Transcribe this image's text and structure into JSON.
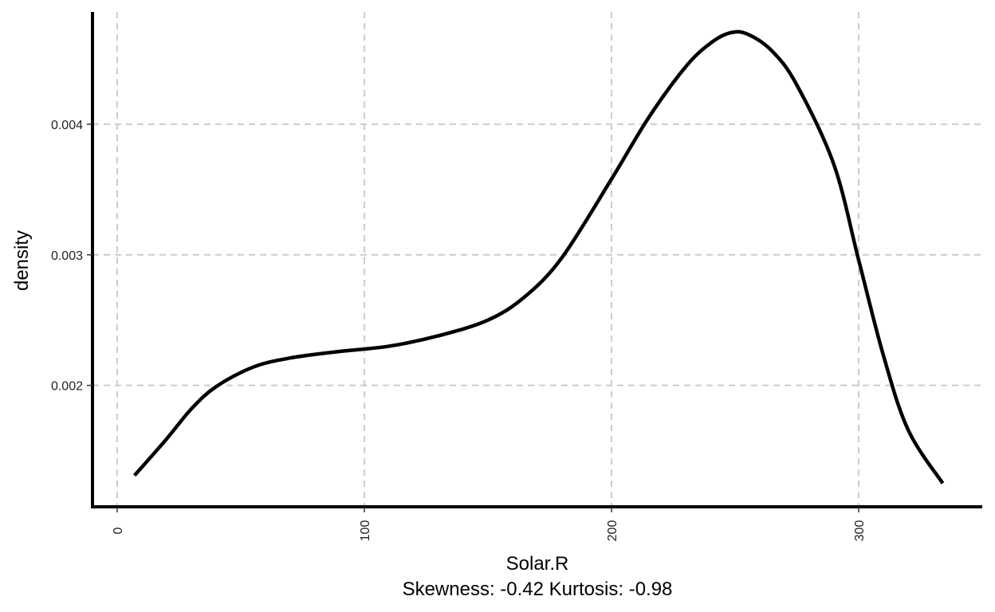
{
  "chart_data": {
    "type": "line",
    "title": "",
    "xlabel": "Solar.R",
    "subtitle": "Skewness: -0.42 Kurtosis: -0.98",
    "ylabel": "density",
    "xlim": [
      -10,
      350
    ],
    "ylim": [
      0.00107,
      0.00486
    ],
    "x_ticks": [
      0,
      100,
      200,
      300
    ],
    "x_tick_labels": [
      "0",
      "100",
      "200",
      "300"
    ],
    "y_ticks": [
      0.002,
      0.003,
      0.004
    ],
    "y_tick_labels": [
      "0.002",
      "0.003",
      "0.004"
    ],
    "grid": true,
    "grid_style": "dashed",
    "line_color": "#000000",
    "grid_color": "#cccccc",
    "legend": "none",
    "series": [
      {
        "x": [
          7,
          20,
          30,
          40,
          55,
          70,
          90,
          110,
          130,
          150,
          165,
          180,
          200,
          215,
          230,
          240,
          248,
          255,
          265,
          275,
          290,
          300,
          310,
          320,
          334
        ],
        "y": [
          0.00131,
          0.00159,
          0.00182,
          0.00199,
          0.00214,
          0.00221,
          0.00226,
          0.0023,
          0.00238,
          0.0025,
          0.00268,
          0.00298,
          0.00358,
          0.00405,
          0.00444,
          0.00462,
          0.0047,
          0.00469,
          0.00456,
          0.0043,
          0.00369,
          0.00296,
          0.00223,
          0.00166,
          0.00125
        ]
      }
    ]
  }
}
